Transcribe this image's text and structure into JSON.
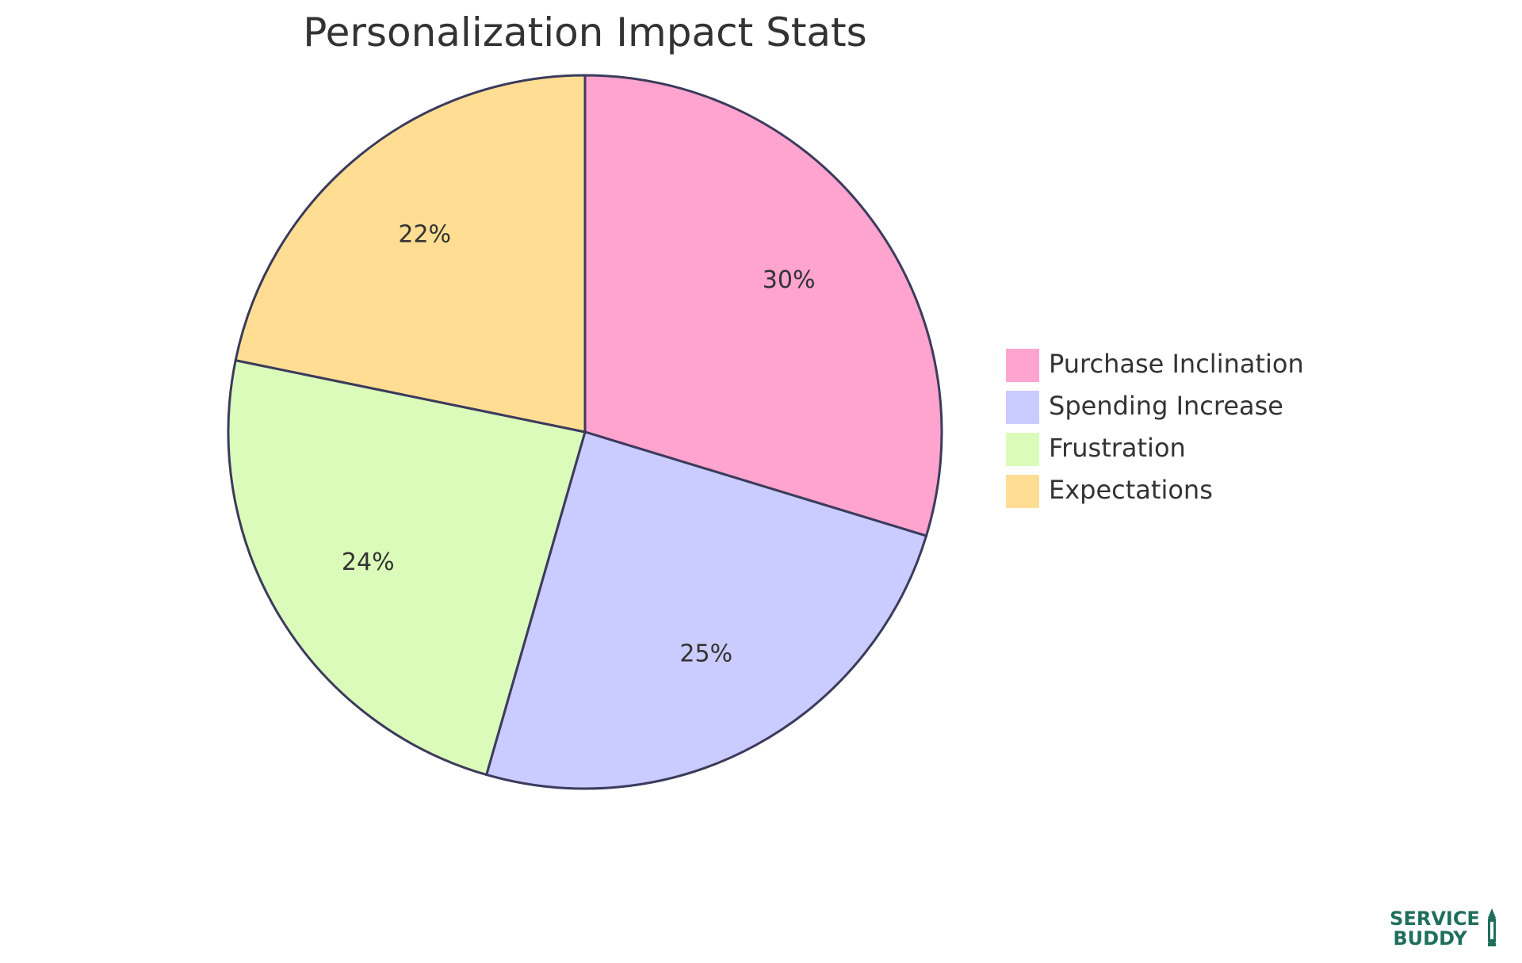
{
  "chart_data": {
    "type": "pie",
    "title": "Personalization Impact Stats",
    "slices": [
      {
        "name": "Purchase Inclination",
        "value": 30,
        "label": "30%",
        "color": "#ffa3cf"
      },
      {
        "name": "Spending Increase",
        "value": 25,
        "label": "25%",
        "color": "#cacbfe"
      },
      {
        "name": "Frustration",
        "value": 24,
        "label": "24%",
        "color": "#dbfbba"
      },
      {
        "name": "Expectations",
        "value": 22,
        "label": "22%",
        "color": "#ffde94"
      }
    ],
    "legend_position": "right",
    "stroke_color": "#3b3b5c"
  },
  "logo": {
    "line1": "SERVICE",
    "line2": "BUDDY",
    "color": "#1f6f5c"
  }
}
